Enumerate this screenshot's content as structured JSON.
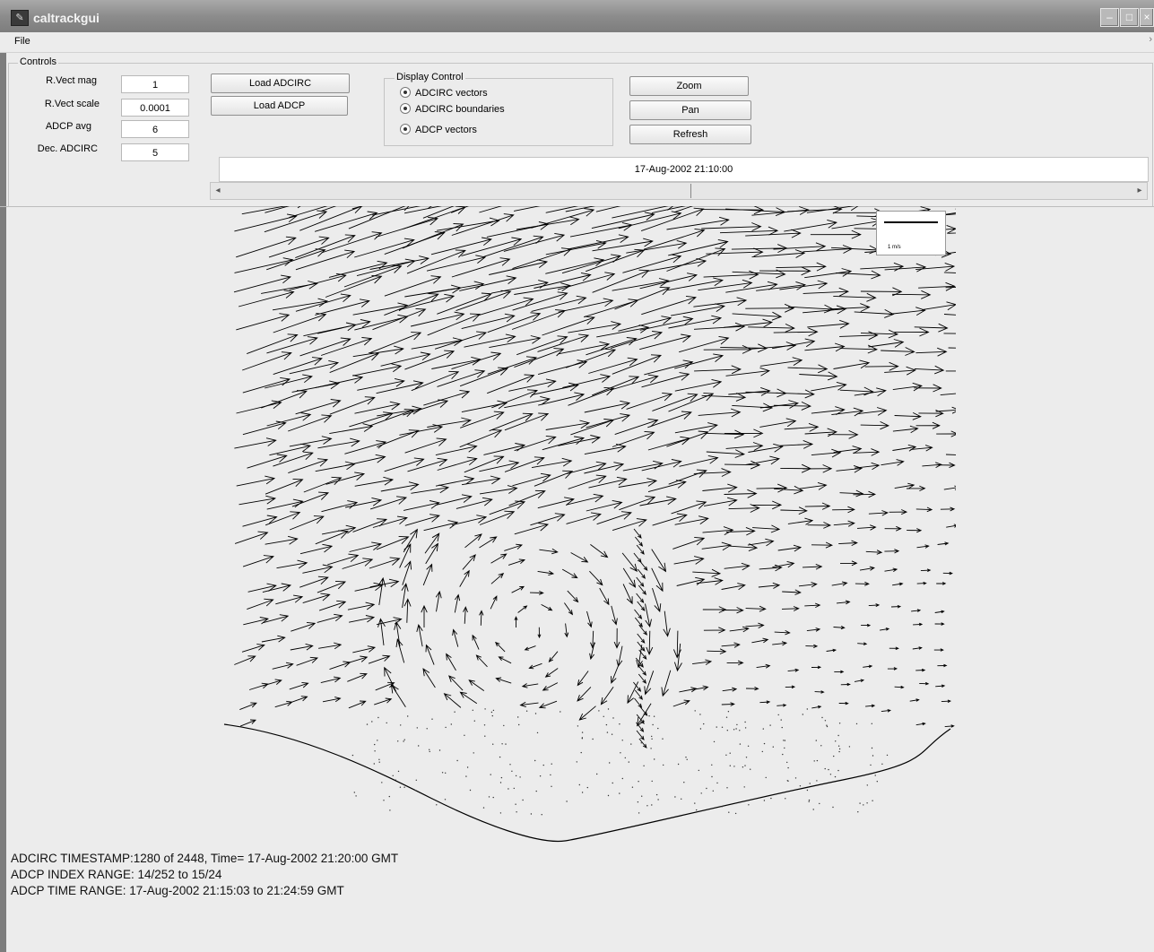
{
  "window": {
    "title": "caltrackgui"
  },
  "menu": {
    "file": "File"
  },
  "controls": {
    "group_label": "Controls",
    "fields": [
      {
        "label": "R.Vect mag",
        "value": "1"
      },
      {
        "label": "R.Vect scale",
        "value": "0.0001"
      },
      {
        "label": "ADCP avg",
        "value": "6"
      },
      {
        "label": "Dec. ADCIRC",
        "value": "5"
      }
    ],
    "load_adcirc": "Load ADCIRC",
    "load_adcp": "Load ADCP"
  },
  "display_control": {
    "label": "Display Control",
    "options": [
      "ADCIRC vectors",
      "ADCIRC boundaries",
      "ADCP vectors"
    ]
  },
  "buttons": {
    "zoom": "Zoom",
    "pan": "Pan",
    "refresh": "Refresh"
  },
  "time_display": "17-Aug-2002 21:10:00",
  "slider": {
    "position_fraction": 0.52
  },
  "legend": {
    "label": "1 m/s"
  },
  "status": {
    "line1": "ADCIRC TIMESTAMP:1280 of 2448, Time= 17-Aug-2002 21:20:00 GMT",
    "line2": "ADCP INDEX RANGE: 14/252 to 15/24",
    "line3": "ADCP TIME RANGE: 17-Aug-2002  21:15:03 to 21:24:59 GMT"
  }
}
